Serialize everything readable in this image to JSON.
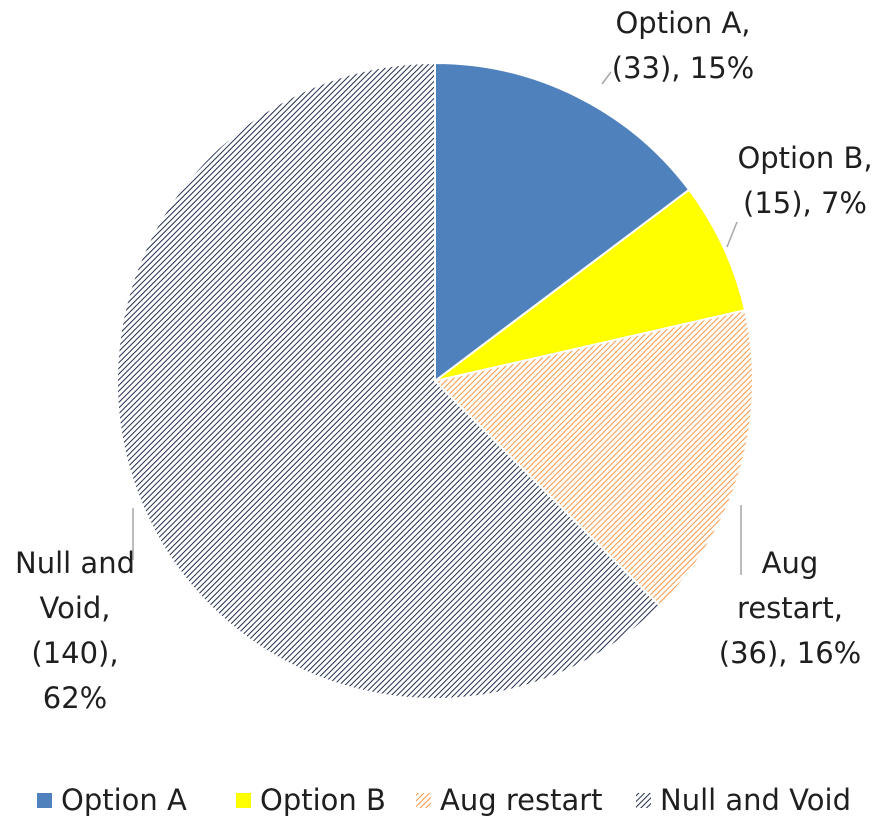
{
  "chart_data": {
    "type": "pie",
    "categories": [
      "Option A",
      "Option B",
      "Aug restart",
      "Null and Void"
    ],
    "values": [
      33,
      15,
      36,
      140
    ],
    "value_labels": [
      [
        "Option A,",
        "(33), 15%"
      ],
      [
        "Option B,",
        "(15), 7%"
      ],
      [
        "Aug",
        "restart,",
        "(36), 16%"
      ],
      [
        "Null and",
        "Void,",
        "(140),",
        "62%"
      ]
    ],
    "colors": [
      "#4f81bd",
      "#ffff00",
      "#f79646",
      "#1f2d4d"
    ],
    "hatched": [
      false,
      false,
      true,
      true
    ],
    "legend": "bottom"
  }
}
